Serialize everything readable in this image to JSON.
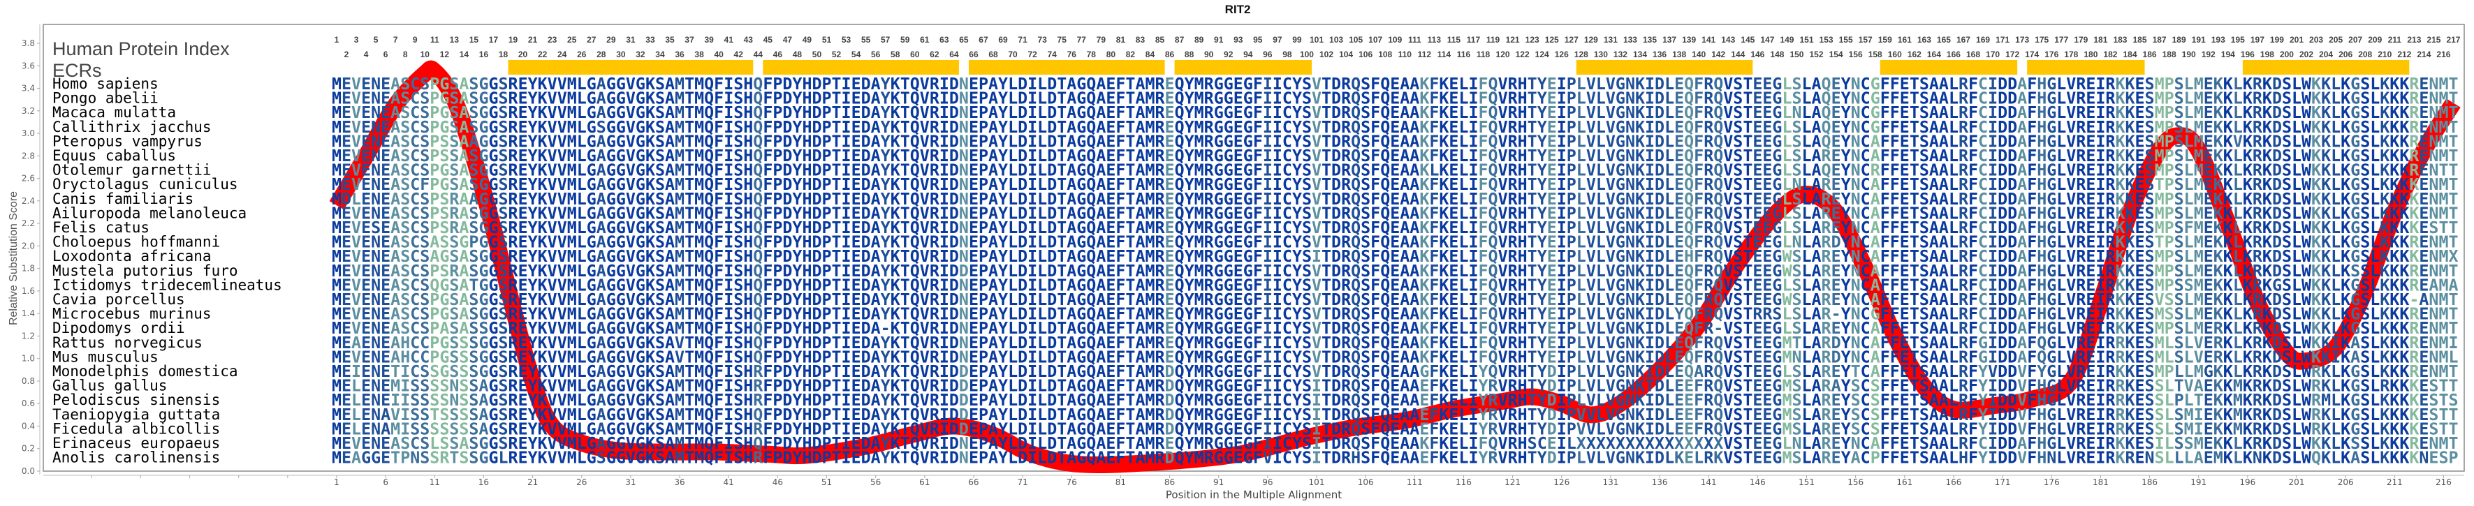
{
  "chart_data": {
    "type": "line",
    "title": "RIT2",
    "xlabel": "Position in the Multiple Alignment",
    "ylabel": "Relative Substitution Score",
    "ylim": [
      0,
      3.8
    ],
    "yticks": [
      "0.0",
      "0.2",
      "0.4",
      "0.6",
      "0.8",
      "1.0",
      "1.2",
      "1.4",
      "1.6",
      "1.8",
      "2.0",
      "2.2",
      "2.4",
      "2.6",
      "2.8",
      "3.0",
      "3.2",
      "3.4",
      "3.6",
      "3.8"
    ],
    "xlim": [
      1,
      217
    ],
    "xtick_step": 5,
    "line_color": "#ff0000",
    "series": [
      {
        "x": [
          1,
          4,
          7,
          10,
          11,
          13,
          15,
          17,
          19,
          21,
          23,
          26,
          30,
          35,
          40,
          45,
          49,
          55,
          60,
          64,
          68,
          72,
          77,
          85,
          93,
          100,
          105,
          110,
          115,
          120,
          123,
          126,
          129,
          132,
          136,
          140,
          144,
          148,
          151,
          154,
          157,
          160,
          163,
          166,
          170,
          174,
          178,
          181,
          184,
          187,
          189,
          191,
          194,
          197,
          200,
          202,
          205,
          208,
          211,
          214,
          217
        ],
        "y": [
          2.36,
          2.8,
          3.25,
          3.53,
          3.55,
          3.3,
          2.78,
          2.15,
          1.45,
          0.8,
          0.4,
          0.25,
          0.18,
          0.17,
          0.17,
          0.15,
          0.14,
          0.22,
          0.33,
          0.4,
          0.32,
          0.15,
          0.06,
          0.08,
          0.15,
          0.3,
          0.39,
          0.45,
          0.55,
          0.62,
          0.66,
          0.6,
          0.5,
          0.6,
          0.9,
          1.3,
          1.85,
          2.3,
          2.46,
          2.3,
          1.8,
          1.2,
          0.75,
          0.55,
          0.58,
          0.64,
          0.8,
          1.5,
          2.3,
          2.85,
          2.98,
          2.85,
          2.2,
          1.5,
          1.05,
          0.98,
          1.1,
          1.6,
          2.3,
          2.85,
          3.27
        ]
      }
    ],
    "ecr_label": "ECRs",
    "ecr_color": "#ffc600",
    "ecrs": [
      [
        19,
        43
      ],
      [
        45,
        64
      ],
      [
        66,
        85
      ],
      [
        87,
        100
      ],
      [
        128,
        145
      ],
      [
        159,
        172
      ],
      [
        174,
        185
      ],
      [
        196,
        212
      ]
    ],
    "index_label": "Human Protein Index",
    "conservation_colors": [
      "#0a3a9e",
      "#1e4f98",
      "#3c6e9c",
      "#5b8fa0",
      "#84b99d"
    ],
    "alignment": [
      {
        "species": "Homo sapiens",
        "seq": "MEVENEASCSPGSASGGSREYKVVMLGAGGVGKSAMTMQFISHQFPDYHDPTIEDAYKTQVRIDNEPAYLDILDTAGQAEFTAMREQYMRGGEGFIICYSVTDRQSFQEAAKFKELIFQVRHTYEIPLVLVGNKIDLEQFRQVSTEEGLSLAQEYNCGFFETSAALRFCIDDAFHGLVREIRKKESMPSLMEKKLKRKDSLWKKLKGSLKKKRENMT"
      },
      {
        "species": "Pongo abelii",
        "seq": "MEVENEASCSPGSASGGSREYKVVMLGAGGVGKSAMTMQFISHQFPDYHDPTIEDAYKTQVRIDNEPAYLDILDTAGQAEFTAMREQYMRGGEGFIICYSVTDRQSFQEAAKFKELIFQVRHTYEIPLVLVGNKIDLEQFRQVSTEEGLSLAQEYNCGFFETSAALRFCIDDAFHGLVREIRKKESMPSLMEKKLKRKDSLWKKLKGSLKKKRENMT"
      },
      {
        "species": "Macaca mulatta",
        "seq": "MEVENEASCSPGSASGGSREYKVVMLGAGGVGKSAMTMQFISHQFPDYHDPTIEDAYKTQVRIDNEPAYLDILDTAGQAEFTAMREQYMRGGEGFIICYSVTDRQSFQEAAKFKELIFQVRHTYEIPLVLVGNKIDLEQFRQVSTEEGLNLAQEYNCGFFETSAALRFCIDDAFHGLVREIRKKESMPSLMEKKLKRKDSLWKKLKGSLKKKRENMT"
      },
      {
        "species": "Callithrix jacchus",
        "seq": "MEVENEASCSPGSASGGSREYKVVMLGSGGVGKSAMTMQFISHQFPDYHDPTIEDAYKTQVRIDNEPAYLDILDTAGQAEFTAMREQYMRGGEGFIICYSVTDRQSFQEAAKFKELIFQVRHTYEIPLVLVGNKIDLEQFRQVSTEEGLSLAQEYNCGFFETSAALRFCIDDAFHGLVREIRKKESMPSLMEKKLKRKDSLWKKLKGSLKKKRENMT"
      },
      {
        "species": "Pteropus vampyrus",
        "seq": "MEVENEASCSPSSAAGGSREYKVVMLGAGGVGKSAMTMQFISHQFPDYHDPTIEDAYKTQVRIDNEPAYLDILDTAGQAEFTAMREQYMRGGEGFIICYSVTDRQSFQEAAKFKELIFQVRHTYEIPLVLVGNKIDLEQFRQVSTEEGLSLAQEYNCAFFETSAALRFCIDDAFHGLVREIRKKESMPSLMEKKVKRKDSLWKKLKGSLKKKRENMT"
      },
      {
        "species": "Equus caballus",
        "seq": "MEVENEASCSPSSASGGSREYKVVMLGAGGVGKSAMTMQFISHQFPDYHDPTIEDAYKTQVRIDNEPAYLDILDTAGQAEFTAMREQYMRGGEGFIICYSVTDRQSFQEAAKFKELIFQVRHTYEIPLVLVGNKIDLEQFRQVSTEEGLSLAREYNCAFFETSAALRFCIDDAFHGLVREIRKKESMPSLMEKKLKRKDSLWKKLKGSLKKKRENMT"
      },
      {
        "species": "Otolemur garnettii",
        "seq": "MEVENEASCSPGSASGGSREYKVVMLGAGGVGKSAMTMQFISHQFPDYHDPTIEDAYKTQVRIDNEPAYLDILDTAGQAEFTAMREQYMRGGEGFIICYSVTDRQSFQEAAKLKELIFQVRHTYEIPLVLVGNKIDLEQFRQVSTEEGLSLAQEYNCRFFETSAALRFCIDDAFHGLVREIRKKESMPSLMEKKLKRKDSLWKKLKGSLKKKRENTT"
      },
      {
        "species": "Oryctolagus cuniculus",
        "seq": "MEVENEASCFPGSASGGSREYKVVMLGAGGVGKSAMTMQFISHQFPDYHDPTIEDAYKTQVRIDNEPAYLDILDTAGQAEFTAMREQYMRGGEGFIICYSVTDRQSFQEAAKFKELIFQVRHTYEIPLVLVGNKIDLEQFRQVSTEEGLNLAREYNCAFFETSAALRFCIDDAFHGLVREIRKKESTPSLMEKKLKRKDSLWKKLKGSLKKKKENMT"
      },
      {
        "species": "Canis familiaris",
        "seq": "MDLENEASCSPSRAAGGSREYKVVMLGAGGVGKSAMTMQFISHQFPDYHDPTIEDAYKTQVRIDNEPAYLDILDTAGQAEFTAMREQYMRGGEGFIICYSVTDRQSFQEAAKFKELIFQVRHTYEIPLVLVGNKIDLEQFRQVSTEEGLSLAREYNCAFFETSAALRFCIDDAFHGLVREIRKKESMPSLMEKKLKRKDSLWKKLKGSLKKKKENMT"
      },
      {
        "species": "Ailuropoda melanoleuca",
        "seq": "MEVENEASCSPSRASGGSREYKVVMLGAGGVGKSAMTMQFISHQFPDYHDPTIEDAYKTQVRIDNEPAYLDILDTAGQAEFTAMREQYMRGGEGFIICYSVTDRQSFQEAAKFKELIFQVRHTYEIPLVLVGNKIDLEQFRQVSTEEGLSLAREYNCAFFETSAALRFCIDDAFHGLVREIRKKESMPSLMEKKLKRKDSLWKKLKGSLKKKKENMT"
      },
      {
        "species": "Felis catus",
        "seq": "MEVESEASCSPSRASGGSREYKVVMLGAGGVGKSAMTMQFISHQFPDYHDPTIEDAYKTQVRIDNEPAYLDILDTAGQAEFTAMREQYMRGGEGFIICYSVTDRQSFQEAAKFKELIFQVRHTYEIPLVLVGNKIDLEQFRQVSTEEGLSLAREYNCAFFETSAALRFCIDDAFHGLVREIRKKESMPSFMEKKLKRKDSLWKKLKGSLKKKKESTT"
      },
      {
        "species": "Choloepus hoffmanni",
        "seq": "MEVENEASCSASSGPGGSREYKVVMLGAGGVGKSAMTMQFISHQFPDYHDPTIEDAYKTQVRIDNEPAYLDILDTAGQAEFTAMREQYMRGGEGFIICYSVTDRQSFQEAAKFKELIFQVRHTYEIPLVLVGNKIDLEQFRQVSTEEGLNLARDYNCAFFETSAALRFCIDDAFHGLVREIRKKESTPSLMEKKLKRKDSLWKKLKGSLKKKRENMT"
      },
      {
        "species": "Loxodonta africana",
        "seq": "MEVENEASCSAGSASGGSREYKVVMLGAGGVGKSAMTMQFISHQFPDYHDPTIEDAYKTQVRIDNEPAYLDILDTAGQAEFTAMREQYMRGGEGFIICYSITDRQSFQEAAKFKELIFQVRHTYEIPLVLVGNKIDLEHFRQVSTEEGWSLAREYNCAFFETSAALRFCIDDAFHGLVREIRKKESMPSLMEKKLKRKDSLWKKLKGSLKKKKENMX"
      },
      {
        "species": "Mustela putorius furo",
        "seq": "MEVENEASCSPSRASGGSREYKVVMLGAGGVGKSAMTMQFISHQFPDYHDPTIEDAYKTQVRIDDEPAYLDILDTAGQAEFTAMREQYMRGGEGFIICYSVTDRQSFQEAAKFKELIFQVRHTYEIPLVLVGNKIDLEQFRQVSTEEGWSLAREYNCAFFETSAALRFCIDDAFHGLVREIRKKESMPSLMEKKLKRKDSLWKKLKSSLKKKRENMT"
      },
      {
        "species": "Ictidomys tridecemlineatus",
        "seq": "MEVENEASCSQGSATGGSREYKVVMLGAGGVGKSAMTMQFISHQFPDYHDPTIEDAYKTQVRIDNEPAYLDILDTAGQAEFTAMREQYMRGGEGFIICYSVTDRQSFQEAAKFKELIFQVRHTYEIPLVLVGNKIDLEQFRQVSTEEGLSLAREYNCAFFETSAALRFCIDDAFHGLVREIRKKESMPSSMEKKLKRKGSLWKKLKGSLKKKREAMA"
      },
      {
        "species": "Cavia porcellus",
        "seq": "MEVENEASCSPGSASGGSREYKVVMLGAGGVGKSAMTMQFISHQFPDYHDPTIEDAYKTQVRIDNEPAYLDILDTAGQAEFTAMREQYMRGGEGFIICYSVTDRQSFQEAAKFKELIFQVRHTYEIPLVLVGNKIDLEQFRQVSTEEGWSLAREYNCAFFETSAALRFCIDDAFHGLVREIRKKESVSSLMEKKLKRKDSLWKKLKGSLKKK-ANMT"
      },
      {
        "species": "Microcebus murinus",
        "seq": "MEVENEASCSPGSASGGSREYKVVMLGAGGVGKSAMTMQFISHQFPDYHDPTIEDAYKTQVRIDNEPAYLDILDTAGQAEFTAMREQYMRGGEGFIICYSVTDRQSFQEAAKFKELIFQVRHTYEIPLVLVGNKIDLYQFRQVSTRRSLSLAR-YNCGFFETSAALRFCIDDAFHGLVREIRKKESMSSLMEKKLKRKDSLWKKLKGSLKKKRENMT"
      },
      {
        "species": "Dipodomys ordii",
        "seq": "MEVENEASCSPASASSGSREYKVVMLGAGGVGKSAMTMQFISHQFPDYHDPTIEDA-KTQVRIDNEPAYLDILDTAGQAEFTAMREQYMRGGEGFIICYSVTDRQSFQEAAKFKELIFQVRHTYEIPLVLVGNKIDLEQFR-VSTEEGLSLAREYNCAFFETSAALRFCIDDAFHGLVREIRKKESMPSLMERKLKRKDSLWKKLKGSLKKKRENMT"
      },
      {
        "species": "Rattus norvegicus",
        "seq": "MEAENEAHCCPGSSSGGSREYKVVMLGAGGVGKSAVTMQFISHQFPDYHDPTIEDAYKTQVRIDNEPAYLDILDTAGQAEFTAMREQYMRGGEGFIICYSVTDRQSFQEAAKFKELIFQVRHTYEIPLVLVGNKIDLEQFRQVSTEEGMTLARDYNCAFFETSAALRFGIDDAFQGLVREIRRKESMLSLVERKLKRKDSLWKKIKASLKKKRENMI"
      },
      {
        "species": "Mus musculus",
        "seq": "MEVENEAHCCPGSSSGGSREYKVVMLGAGGVGKSAVTMQFISHQFPDYHDPTIEDAYKTQVRIDNEPAYLDILDTAGQAEFTAMREQYMRGGEGFIICYSVTDRQSFQEAAKFKELIFQVRHTYEIPLVLVGNKIDLEQFRQVSTEEGMNLARDYNCAFFETSAALRFGIDDAFQGLVREIRRKESMLSLVERKLKRKDSLWKKIKASLKKKRENML"
      },
      {
        "species": "Monodelphis domestica",
        "seq": "MEIENETICSSGSSSGGSREYKVVMLGAGGVGKSAMTMQFISHRFPDYHDPTIEDAYKTQVRIDDEPAYLDILDTAGQAEFTAMRDQYMRGGEGFIICYSVTDRQSFQEAAGFKELIYQVRHTYDIPLVLVGNKIDLEQARQVSTEEGLSLAREYTCAFFETSAALRFYVDDVFYGLVREIRKKESMPLLMGKKLKRKDSLWRKLKGSLKKKRENMT"
      },
      {
        "species": "Gallus gallus",
        "seq": "MELENEMISSSSNSSAGSREYKVVMLGAGGVGKSAMTMQFISHRFPDYHDPTIEDAYKTQVRIDDEPAYLDILDTAGQAEFTAMRDQYMRGGEGFIICYSITDRQSFQEAAEFKELIYRVRHTYDIPLVLVGNKTDLEEFRQVSTEEGMSLARAYSCSFFETSAALRFYIDDVFHGLVREIRRKESSLTVAEKKMKRKDSLWRKLKGSLRKKKESTT"
      },
      {
        "species": "Pelodiscus sinensis",
        "seq": "MELENEIISSSSNSSAGSREYKVVMLGAGGVGKSAMTMQFISHRFPDYHDPTIEDAYKTQVRIDDEPAYLDILDTAGQAEFTAMRDQYMRGGEGFIICYSITDRQSFQEAAEFKELIYRVRHTYDIPLVLVGNKIDLEEFRQVSTEEGMSLAREYSCSFFETSAALRFYIDDVFHGLVREIRRKESSLPLTEKKMKRKDSLWRMLKGSLKKKKESTS"
      },
      {
        "species": "Taeniopygia guttata",
        "seq": "MELENAVISSTSSSSAGSREYKVVMLGAGGVGKSAMTMQFISHQFPDYHDPTIEDAYKTQVRIDDEPAYLDILDTAGQAEFTAMRDQYMRGGEGFIICYSITDRQSFQEAAEFKELIYRVRHTYDIPVVLVGNKIDLEEFRQVSTEEGMSLAREYSCSFFETSAALRFYIDDVFHGLVREIRRKESSLSMIEKKMKRKDSLWRKLKGSLKKKKESTT"
      },
      {
        "species": "Ficedula albicollis",
        "seq": "MELENAMISSSSSSSAGSREYKVVMLGAGGVGKSAMTMQFISHRFPDYHDPTIEDAYKTQVRIDDEPAYLDILDTAGQAEFTAMRDQYMRGGEGFIICYSITDRQSFQEAAEFKELIYRVRHTYDIPVVLVGNKIDLEEFRQVSTEEGMSLAREYSCSFFETSAALRFYIDDVFHGLVREIRRKESSLSMIEKKMKRKDSLWRKLKGSLKKKKESTT"
      },
      {
        "species": "Erinaceus europaeus",
        "seq": "MEVENEASCSLSSASGGSREYKVVMLGAGGVGKSAMTMQFISHQFPDYHDPTIEDAYKTQVRIDNEPAYLDILDTAGQAEFTAMREQYMRGGEGFIICYSITDRQSFQEAAKFKELIFQVRHSCEILXXXXXXXXXXXXXXXVSTEEGLNLAREYNCAFFETSAALRFCIDDAFHGLVREIRKKESILSSMEKKLKRKDSLWKKLKSSLKKKRENMT"
      },
      {
        "species": "Anolis carolinensis",
        "seq": "MEAGGETPNSSRTSSGGLREYKVVMLGSGGVGKSAMTMQFISHRFPDYHDPTIEDAYKTQVRIDNEPAYLDILDTAGQAEFTAMRDQYMRGGEGFVICYSITDRHSFQEAAEFKELIYRVRHTYDIPLVLVGNKIDLKELRKVSTEEGMSLAREYACPFFETSAALHFYIDDVFHNLVREIRKRENSLLLAEMKLKNKDSLWQKLKASLKKKKNESP"
      }
    ]
  }
}
